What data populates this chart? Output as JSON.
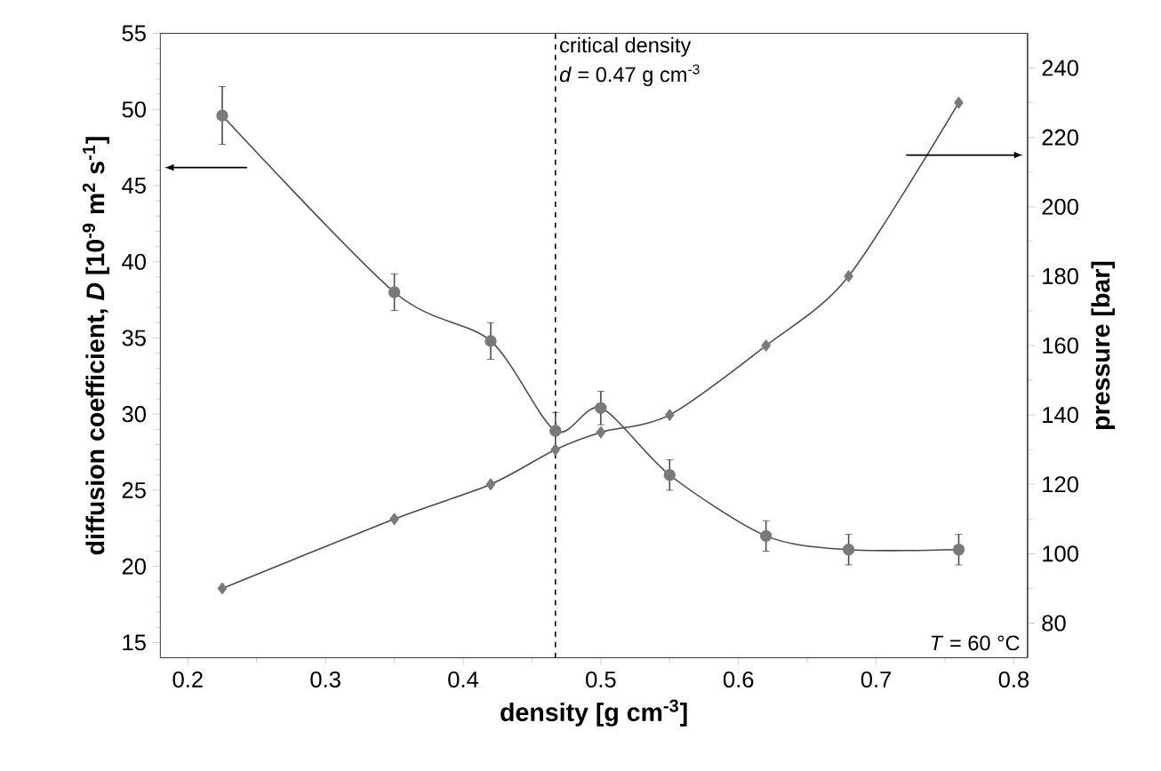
{
  "chart_data": {
    "type": "line",
    "xlabel": "density [g cm$^{-3}$]",
    "ylabel": "diffusion coefficient, *D* [10$^{-9}$ m$^{2}$ s$^{-1}$]",
    "y2label": "pressure [bar]",
    "xlim": [
      0.18,
      0.81
    ],
    "xticks": [
      0.2,
      0.3,
      0.4,
      0.5,
      0.6,
      0.7,
      0.8
    ],
    "ylim": [
      14,
      55
    ],
    "yticks": [
      15,
      20,
      25,
      30,
      35,
      40,
      45,
      50,
      55
    ],
    "y2lim": [
      70,
      250
    ],
    "y2ticks": [
      80,
      100,
      120,
      140,
      160,
      180,
      200,
      220,
      240
    ],
    "series": [
      {
        "color": "#7a7a7a",
        "marker": "circle",
        "x": [
          0.225,
          0.35,
          0.42,
          0.467,
          0.5,
          0.55,
          0.62,
          0.68,
          0.76
        ],
        "values": [
          49.6,
          38.0,
          34.8,
          28.9,
          30.4,
          26.0,
          22.0,
          21.1,
          21.1
        ],
        "errors": [
          1.9,
          1.2,
          1.2,
          1.2,
          1.1,
          1.0,
          1.0,
          1.0,
          1.0
        ]
      },
      {
        "color": "#7a7a7a",
        "marker": "diamond",
        "axis": "y2",
        "x": [
          0.225,
          0.35,
          0.42,
          0.467,
          0.5,
          0.55,
          0.62,
          0.68,
          0.76
        ],
        "values": [
          90,
          110,
          120,
          130,
          135,
          140,
          160,
          180,
          230
        ]
      }
    ],
    "ref_lines": [
      {
        "axis": "x",
        "value": 0.467,
        "label": "critical density",
        "line_style": "dashed",
        "color": "#000000"
      }
    ],
    "annotations": [
      "*d* = 0.47 g cm$^{-3}$",
      "*T* = 60 °C"
    ]
  }
}
